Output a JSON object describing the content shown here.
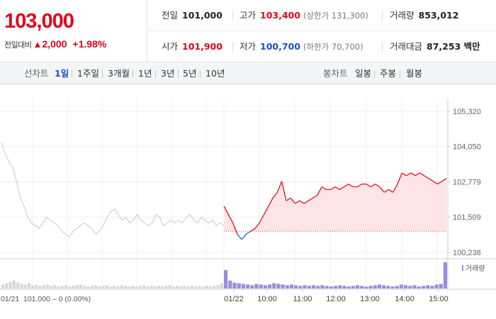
{
  "summary": {
    "current_price": "103,000",
    "change_label": "전일대비",
    "change_arrow": "▲",
    "change_amount": "2,000",
    "change_rate": "+1.98%"
  },
  "stats": {
    "prev_close": {
      "label": "전일",
      "value": "101,000"
    },
    "high": {
      "label": "고가",
      "value": "103,400",
      "sub_label": "(상한가 131,300)"
    },
    "volume": {
      "label": "거래량",
      "value": "853,012"
    },
    "open": {
      "label": "시가",
      "value": "101,900"
    },
    "low": {
      "label": "저가",
      "value": "100,700",
      "sub_label": "(하한가 70,700)"
    },
    "trade_amount": {
      "label": "거래대금",
      "value": "87,253 백만"
    }
  },
  "toolbar": {
    "line_chart_label": "선차트",
    "periods": [
      "1일",
      "1주일",
      "3개월",
      "1년",
      "3년",
      "5년",
      "10년"
    ],
    "active_period": "1일",
    "candle_chart_label": "봉차트",
    "candles": [
      "일봉",
      "주봉",
      "월봉"
    ]
  },
  "chart_data": {
    "type": "line",
    "y_ticks": [
      "105,320",
      "104,050",
      "102,779",
      "101,509",
      "100,238"
    ],
    "y_range": [
      100238,
      105320
    ],
    "baseline": 101000,
    "x_labels": [
      "01/22",
      "10:00",
      "11:00",
      "12:00",
      "13:00",
      "14:00",
      "15:00"
    ],
    "prev_day_label": "01/21",
    "prev_day_summary": "101,000 – 0 (0.00%)",
    "volume_legend": "거래량",
    "prev_day_series": {
      "name": "",
      "values": [
        104200,
        103800,
        103500,
        103300,
        102800,
        102200,
        101900,
        101500,
        101300,
        101200,
        101100,
        101300,
        101500,
        101400,
        101300,
        101200,
        101000,
        100900,
        100800,
        101000,
        101100,
        101200,
        101300,
        101200,
        101100,
        100900,
        101000,
        101200,
        101500,
        101700,
        101800,
        101600,
        101400,
        101500,
        101300,
        101400,
        101600,
        101400,
        101300,
        101200,
        101300,
        101600,
        101500,
        101200,
        101300,
        101400,
        101300,
        101400,
        101300,
        101500,
        101600,
        101400,
        101300,
        101500,
        101400,
        101300,
        101400,
        101200,
        101300,
        101200
      ],
      "color": "#c8c8c8"
    },
    "today_series": {
      "name": "",
      "values": [
        101900,
        101600,
        101300,
        100900,
        100700,
        100900,
        101000,
        101100,
        101300,
        101600,
        101900,
        102200,
        102400,
        102800,
        102100,
        102200,
        102000,
        102100,
        102000,
        102100,
        102200,
        102300,
        102600,
        102500,
        102500,
        102600,
        102500,
        102600,
        102700,
        102600,
        102600,
        102700,
        102700,
        102600,
        102700,
        102600,
        102400,
        102500,
        102400,
        102700,
        103100,
        103000,
        103100,
        103000,
        103100,
        103000,
        102900,
        102800,
        102700,
        102800,
        102900
      ],
      "color_up": "#e2001a",
      "color_down": "#1a4fd1",
      "fill": "#fde4e6"
    },
    "volume": {
      "prev_day": [
        6,
        8,
        10,
        12,
        9,
        7,
        6,
        8,
        5,
        6,
        4,
        5,
        6,
        4,
        5,
        3,
        4,
        5,
        3,
        4,
        5,
        6,
        4,
        3,
        4,
        5,
        3,
        4,
        5,
        3,
        4,
        3,
        5,
        4,
        3,
        4,
        3,
        4,
        5,
        3,
        4,
        3,
        4,
        3,
        4,
        5,
        3,
        4,
        3,
        4,
        3,
        4,
        3,
        4,
        3,
        4,
        3,
        4,
        5,
        8
      ],
      "today": [
        28,
        12,
        9,
        8,
        7,
        6,
        5,
        7,
        6,
        5,
        6,
        8,
        7,
        6,
        5,
        6,
        5,
        4,
        5,
        4,
        5,
        4,
        5,
        4,
        3,
        4,
        5,
        4,
        3,
        4,
        5,
        4,
        3,
        4,
        5,
        6,
        5,
        4,
        3,
        4,
        6,
        5,
        4,
        5,
        3,
        4,
        5,
        4,
        6,
        7,
        40
      ],
      "color": "#9a8fd8"
    },
    "grid": true
  }
}
